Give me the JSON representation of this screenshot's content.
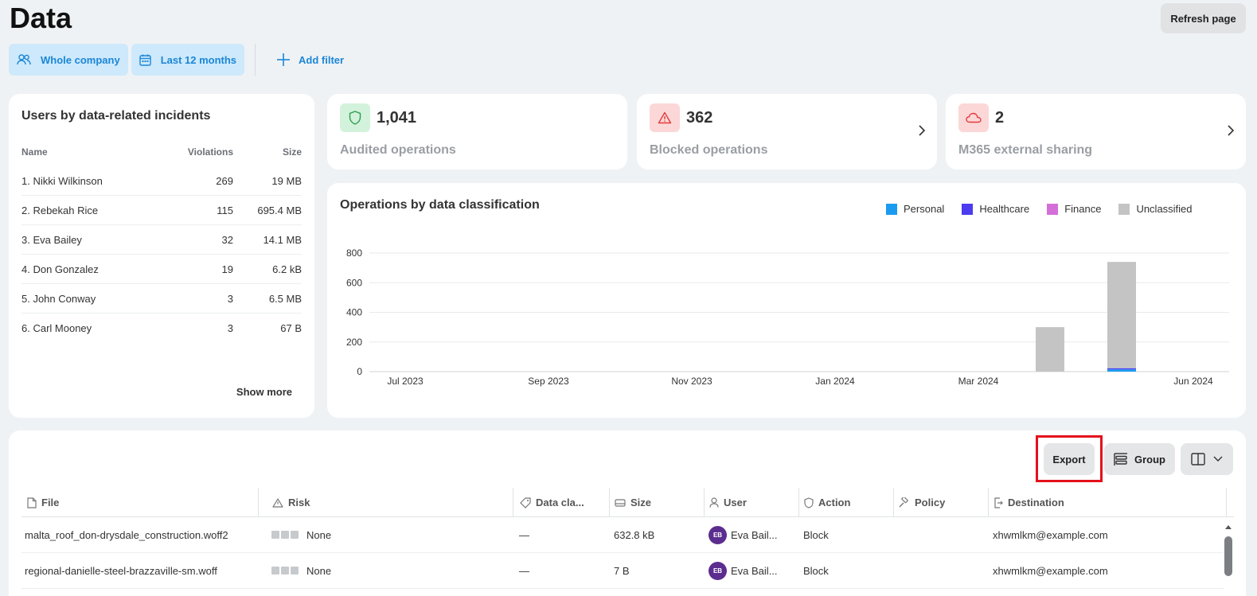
{
  "header": {
    "title": "Data",
    "refresh_label": "Refresh page"
  },
  "filters": {
    "company": "Whole company",
    "period": "Last 12 months",
    "add": "Add filter"
  },
  "users_card": {
    "title": "Users by data-related incidents",
    "columns": {
      "name": "Name",
      "violations": "Violations",
      "size": "Size"
    },
    "rows": [
      {
        "name": "1. Nikki Wilkinson",
        "violations": "269",
        "size": "19 MB"
      },
      {
        "name": "2. Rebekah Rice",
        "violations": "115",
        "size": "695.4 MB"
      },
      {
        "name": "3. Eva Bailey",
        "violations": "32",
        "size": "14.1 MB"
      },
      {
        "name": "4. Don Gonzalez",
        "violations": "19",
        "size": "6.2 kB"
      },
      {
        "name": "5. John Conway",
        "violations": "3",
        "size": "6.5 MB"
      },
      {
        "name": "6. Carl Mooney",
        "violations": "3",
        "size": "67 B"
      }
    ],
    "show_more": "Show more"
  },
  "stats": [
    {
      "value": "1,041",
      "label": "Audited operations",
      "icon": "shield-icon",
      "color": "#2e9e4f"
    },
    {
      "value": "362",
      "label": "Blocked operations",
      "icon": "warning-icon",
      "color": "#e23b3b"
    },
    {
      "value": "2",
      "label": "M365 external sharing",
      "icon": "cloud-icon",
      "color": "#e23b3b"
    }
  ],
  "chart_data": {
    "type": "bar",
    "stacked": true,
    "title": "Operations by data classification",
    "legend_position": "top-right",
    "x_ticks": [
      "Jul 2023",
      "Sep 2023",
      "Nov 2023",
      "Jan 2024",
      "Mar 2024",
      "Jun 2024"
    ],
    "categories": [
      "Jul 2023",
      "Aug 2023",
      "Sep 2023",
      "Oct 2023",
      "Nov 2023",
      "Dec 2023",
      "Jan 2024",
      "Feb 2024",
      "Mar 2024",
      "Apr 2024",
      "May 2024",
      "Jun 2024"
    ],
    "series": [
      {
        "name": "Personal",
        "color": "#1a9bf0",
        "values": [
          0,
          0,
          0,
          0,
          0,
          0,
          0,
          0,
          0,
          0,
          15,
          0
        ]
      },
      {
        "name": "Healthcare",
        "color": "#4b3cf0",
        "values": [
          0,
          0,
          0,
          0,
          0,
          0,
          0,
          0,
          0,
          0,
          8,
          0
        ]
      },
      {
        "name": "Finance",
        "color": "#d56fd8",
        "values": [
          0,
          0,
          0,
          0,
          0,
          0,
          0,
          0,
          0,
          0,
          0,
          0
        ]
      },
      {
        "name": "Unclassified",
        "color": "#c4c4c4",
        "values": [
          0,
          0,
          0,
          0,
          0,
          0,
          0,
          0,
          0,
          300,
          717,
          0
        ]
      }
    ],
    "y_ticks": [
      0,
      200,
      400,
      600,
      800
    ],
    "ylim": [
      0,
      800
    ],
    "grid": true
  },
  "table": {
    "toolbar": {
      "export": "Export",
      "group": "Group"
    },
    "columns": [
      "File",
      "Risk",
      "Data cla...",
      "Size",
      "User",
      "Action",
      "Policy",
      "Destination"
    ],
    "rows": [
      {
        "file": "malta_roof_don-drysdale_construction.woff2",
        "risk": "None",
        "class": "—",
        "size": "632.8 kB",
        "initials": "EB",
        "user": "Eva Bail...",
        "action": "Block",
        "policy": "",
        "destination": "xhwmlkm@example.com"
      },
      {
        "file": "regional-danielle-steel-brazzaville-sm.woff",
        "risk": "None",
        "class": "—",
        "size": "7 B",
        "initials": "EB",
        "user": "Eva Bail...",
        "action": "Block",
        "policy": "",
        "destination": "xhwmlkm@example.com"
      }
    ]
  }
}
